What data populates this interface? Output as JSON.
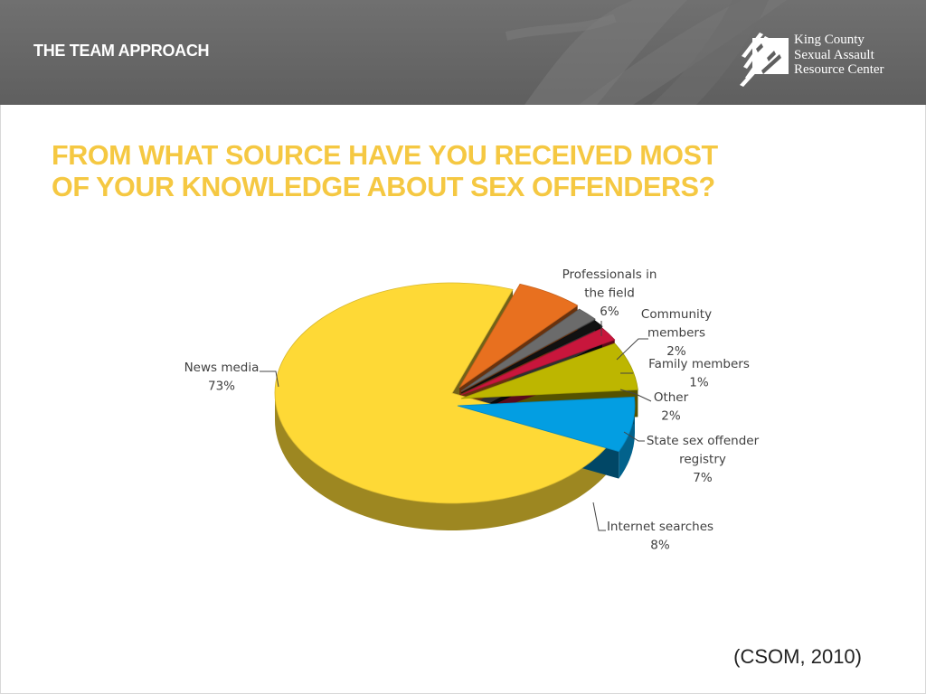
{
  "header": {
    "section_title": "THE TEAM APPROACH",
    "logo": {
      "lines": [
        "King County",
        "Sexual Assault",
        "Resource Center"
      ],
      "icon": "brush-stroke-logo-icon"
    }
  },
  "question": {
    "line1": "FROM WHAT SOURCE HAVE YOU RECEIVED MOST",
    "line2": "OF YOUR KNOWLEDGE ABOUT SEX OFFENDERS?"
  },
  "citation": "(CSOM, 2010)",
  "colors": {
    "header_bg": "#666666",
    "question_text": "#f5c842"
  },
  "chart_data": {
    "type": "pie",
    "style": "3d-exploded",
    "slices": [
      {
        "label": [
          "News media",
          "73%"
        ],
        "value": 73,
        "color": "#fed936"
      },
      {
        "label": [
          "Professionals in",
          "the field",
          "6%"
        ],
        "value": 6,
        "color": "#e8701f"
      },
      {
        "label": [
          "Community",
          "members",
          "2%"
        ],
        "value": 2,
        "color": "#6b6b6b"
      },
      {
        "label": [
          "Family members",
          "1%"
        ],
        "value": 1,
        "color": "#111111"
      },
      {
        "label": [
          "Other",
          "2%"
        ],
        "value": 2,
        "color": "#c8163c"
      },
      {
        "label": [
          "State sex offender",
          "registry",
          "7%"
        ],
        "value": 7,
        "color": "#bdb600"
      },
      {
        "label": [
          "Internet searches",
          "8%"
        ],
        "value": 8,
        "color": "#039ee2"
      }
    ]
  }
}
